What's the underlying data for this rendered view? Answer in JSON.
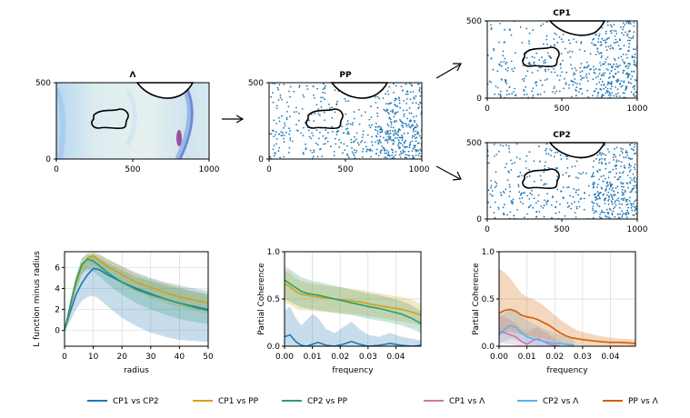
{
  "colors": {
    "cp1_cp2": "#1f77b4",
    "cp1_pp": "#d4a017",
    "cp2_pp": "#2a9d6f",
    "cp1_lam": "#cc79a7",
    "cp2_lam": "#56b4e9",
    "pp_lam": "#d55e00",
    "points": "#1f77b4"
  },
  "maps": [
    {
      "id": "lambda",
      "title": "Λ",
      "kind": "intensity",
      "xticks": [
        "0",
        "500",
        "1000"
      ],
      "yticks": [
        "0",
        "500"
      ]
    },
    {
      "id": "pp",
      "title": "PP",
      "kind": "points",
      "xticks": [
        "0",
        "500",
        "1000"
      ],
      "yticks": [
        "0",
        "500"
      ]
    },
    {
      "id": "cp1",
      "title": "CP1",
      "kind": "points",
      "xticks": [
        "0",
        "500",
        "1000"
      ],
      "yticks": [
        "0",
        "500"
      ]
    },
    {
      "id": "cp2",
      "title": "CP2",
      "kind": "points",
      "xticks": [
        "0",
        "500",
        "1000"
      ],
      "yticks": [
        "0",
        "500"
      ]
    }
  ],
  "chart_data": [
    {
      "type": "line",
      "id": "lfunc",
      "xlabel": "radius",
      "ylabel": "L function minus radius",
      "xlim": [
        0,
        50
      ],
      "ylim": [
        -1.5,
        7.5
      ],
      "xticks": [
        0,
        10,
        20,
        30,
        40,
        50
      ],
      "yticks": [
        0,
        2,
        4,
        6
      ],
      "series": [
        {
          "name": "CP1 vs CP2",
          "colorKey": "cp1_cp2",
          "x": [
            0,
            2,
            4,
            6,
            8,
            10,
            12,
            15,
            20,
            25,
            30,
            35,
            40,
            45,
            50
          ],
          "y": [
            0,
            1.8,
            3.4,
            4.5,
            5.3,
            5.9,
            5.8,
            5.3,
            4.6,
            4.0,
            3.5,
            3.0,
            2.6,
            2.3,
            2.0
          ],
          "lo": [
            0,
            0.9,
            2.0,
            2.8,
            3.2,
            3.3,
            3.0,
            2.3,
            1.2,
            0.4,
            -0.2,
            -0.6,
            -0.9,
            -1.0,
            -1.1
          ],
          "hi": [
            0,
            2.7,
            4.8,
            6.2,
            7.0,
            7.3,
            7.2,
            6.8,
            6.1,
            5.5,
            5.0,
            4.6,
            4.3,
            4.0,
            3.8
          ]
        },
        {
          "name": "CP1 vs PP",
          "colorKey": "cp1_pp",
          "x": [
            0,
            2,
            4,
            6,
            8,
            10,
            12,
            15,
            20,
            25,
            30,
            35,
            40,
            45,
            50
          ],
          "y": [
            0,
            2.3,
            4.5,
            6.1,
            6.9,
            7.1,
            6.7,
            6.1,
            5.3,
            4.6,
            4.1,
            3.6,
            3.2,
            2.9,
            2.6
          ],
          "lo": [
            0,
            1.8,
            3.8,
            5.3,
            6.0,
            6.2,
            5.9,
            5.3,
            4.4,
            3.7,
            3.1,
            2.6,
            2.2,
            1.9,
            1.6
          ],
          "hi": [
            0,
            2.8,
            5.1,
            6.8,
            7.4,
            7.5,
            7.3,
            6.8,
            6.1,
            5.4,
            4.9,
            4.5,
            4.1,
            3.8,
            3.5
          ]
        },
        {
          "name": "CP2 vs PP",
          "colorKey": "cp2_pp",
          "x": [
            0,
            2,
            4,
            6,
            8,
            10,
            12,
            15,
            20,
            25,
            30,
            35,
            40,
            45,
            50
          ],
          "y": [
            0,
            2.4,
            4.7,
            6.3,
            6.8,
            6.6,
            6.2,
            5.5,
            4.6,
            3.9,
            3.4,
            3.0,
            2.6,
            2.2,
            1.9
          ],
          "lo": [
            0,
            1.9,
            4.0,
            5.4,
            5.8,
            5.6,
            5.2,
            4.4,
            3.4,
            2.6,
            2.0,
            1.5,
            1.1,
            0.8,
            0.6
          ],
          "hi": [
            0,
            2.9,
            5.3,
            6.9,
            7.3,
            7.2,
            6.9,
            6.4,
            5.7,
            5.1,
            4.7,
            4.3,
            4.0,
            3.7,
            3.4
          ]
        }
      ]
    },
    {
      "type": "line",
      "id": "coh1",
      "xlabel": "frequency",
      "ylabel": "Partial Coherence",
      "xlim": [
        0,
        0.049
      ],
      "ylim": [
        0,
        1.0
      ],
      "xticks": [
        0,
        0.01,
        0.02,
        0.03,
        0.04
      ],
      "xticklabels": [
        "0.00",
        "0.01",
        "0.02",
        "0.03",
        "0.04"
      ],
      "yticks": [
        0,
        0.5,
        1.0
      ],
      "yticklabels": [
        "0.0",
        "0.5",
        "1.0"
      ],
      "series": [
        {
          "name": "CP1 vs CP2",
          "colorKey": "cp1_cp2",
          "x": [
            0,
            0.002,
            0.004,
            0.006,
            0.008,
            0.01,
            0.012,
            0.015,
            0.018,
            0.021,
            0.024,
            0.027,
            0.03,
            0.034,
            0.038,
            0.042,
            0.046,
            0.049
          ],
          "y": [
            0.1,
            0.12,
            0.05,
            0.01,
            0.0,
            0.02,
            0.04,
            0.01,
            0.0,
            0.02,
            0.05,
            0.02,
            0.0,
            0.01,
            0.03,
            0.01,
            0.0,
            0.01
          ],
          "lo": [
            0,
            0,
            0,
            0,
            0,
            0,
            0,
            0,
            0,
            0,
            0,
            0,
            0,
            0,
            0,
            0,
            0,
            0
          ],
          "hi": [
            0.38,
            0.42,
            0.3,
            0.22,
            0.28,
            0.34,
            0.3,
            0.18,
            0.14,
            0.2,
            0.26,
            0.18,
            0.12,
            0.1,
            0.14,
            0.1,
            0.08,
            0.06
          ]
        },
        {
          "name": "CP1 vs PP",
          "colorKey": "cp1_pp",
          "x": [
            0,
            0.002,
            0.004,
            0.006,
            0.008,
            0.01,
            0.012,
            0.015,
            0.018,
            0.021,
            0.024,
            0.027,
            0.03,
            0.034,
            0.038,
            0.042,
            0.046,
            0.049
          ],
          "y": [
            0.66,
            0.63,
            0.58,
            0.55,
            0.54,
            0.53,
            0.52,
            0.51,
            0.5,
            0.49,
            0.48,
            0.47,
            0.45,
            0.43,
            0.41,
            0.39,
            0.36,
            0.33
          ],
          "lo": [
            0.46,
            0.44,
            0.4,
            0.38,
            0.38,
            0.37,
            0.37,
            0.36,
            0.35,
            0.35,
            0.34,
            0.33,
            0.32,
            0.3,
            0.28,
            0.26,
            0.24,
            0.22
          ],
          "hi": [
            0.8,
            0.77,
            0.72,
            0.69,
            0.67,
            0.66,
            0.65,
            0.64,
            0.63,
            0.62,
            0.61,
            0.6,
            0.58,
            0.56,
            0.54,
            0.52,
            0.49,
            0.45
          ]
        },
        {
          "name": "CP2 vs PP",
          "colorKey": "cp2_pp",
          "x": [
            0,
            0.002,
            0.004,
            0.006,
            0.008,
            0.01,
            0.012,
            0.015,
            0.018,
            0.021,
            0.024,
            0.027,
            0.03,
            0.034,
            0.038,
            0.042,
            0.046,
            0.049
          ],
          "y": [
            0.7,
            0.66,
            0.62,
            0.58,
            0.56,
            0.55,
            0.54,
            0.52,
            0.5,
            0.48,
            0.46,
            0.44,
            0.42,
            0.4,
            0.37,
            0.34,
            0.29,
            0.24
          ],
          "lo": [
            0.5,
            0.47,
            0.44,
            0.41,
            0.4,
            0.39,
            0.38,
            0.37,
            0.36,
            0.34,
            0.33,
            0.31,
            0.29,
            0.27,
            0.25,
            0.22,
            0.18,
            0.14
          ],
          "hi": [
            0.85,
            0.81,
            0.77,
            0.73,
            0.71,
            0.69,
            0.68,
            0.66,
            0.64,
            0.62,
            0.6,
            0.58,
            0.56,
            0.54,
            0.51,
            0.48,
            0.43,
            0.37
          ]
        }
      ]
    },
    {
      "type": "line",
      "id": "coh2",
      "xlabel": "frequency",
      "ylabel": "Partial Coherence",
      "xlim": [
        0,
        0.049
      ],
      "ylim": [
        0,
        1.0
      ],
      "xticks": [
        0,
        0.01,
        0.02,
        0.03,
        0.04
      ],
      "xticklabels": [
        "0.00",
        "0.01",
        "0.02",
        "0.03",
        "0.04"
      ],
      "yticks": [
        0,
        0.5,
        1.0
      ],
      "yticklabels": [
        "0.0",
        "0.5",
        "1.0"
      ],
      "series": [
        {
          "name": "CP1 vs Λ",
          "colorKey": "cp1_lam",
          "x": [
            0,
            0.002,
            0.004,
            0.006,
            0.008,
            0.01,
            0.012,
            0.014,
            0.016,
            0.018,
            0.02,
            0.022
          ],
          "y": [
            0.16,
            0.14,
            0.12,
            0.1,
            0.05,
            0.02,
            0.06,
            0.08,
            0.05,
            0.02,
            0.01,
            0.0
          ],
          "lo": [
            0.04,
            0.03,
            0.02,
            0.01,
            0,
            0,
            0,
            0,
            0,
            0,
            0,
            0
          ],
          "hi": [
            0.34,
            0.31,
            0.28,
            0.24,
            0.18,
            0.14,
            0.18,
            0.2,
            0.16,
            0.12,
            0.08,
            0.05
          ]
        },
        {
          "name": "CP2 vs Λ",
          "colorKey": "cp2_lam",
          "x": [
            0,
            0.002,
            0.004,
            0.006,
            0.008,
            0.01,
            0.012,
            0.015,
            0.018,
            0.021,
            0.024,
            0.027
          ],
          "y": [
            0.12,
            0.18,
            0.22,
            0.2,
            0.14,
            0.1,
            0.08,
            0.06,
            0.04,
            0.03,
            0.02,
            0.01
          ],
          "lo": [
            0.02,
            0.05,
            0.08,
            0.07,
            0.04,
            0.02,
            0.01,
            0,
            0,
            0,
            0,
            0
          ],
          "hi": [
            0.3,
            0.36,
            0.4,
            0.38,
            0.32,
            0.27,
            0.24,
            0.2,
            0.16,
            0.13,
            0.1,
            0.08
          ]
        },
        {
          "name": "PP vs Λ",
          "colorKey": "pp_lam",
          "x": [
            0,
            0.002,
            0.004,
            0.006,
            0.008,
            0.01,
            0.012,
            0.014,
            0.016,
            0.018,
            0.02,
            0.022,
            0.024,
            0.026,
            0.028,
            0.03,
            0.033,
            0.036,
            0.04,
            0.044,
            0.049
          ],
          "y": [
            0.35,
            0.38,
            0.39,
            0.37,
            0.33,
            0.31,
            0.3,
            0.28,
            0.25,
            0.22,
            0.18,
            0.14,
            0.11,
            0.09,
            0.08,
            0.07,
            0.06,
            0.05,
            0.04,
            0.04,
            0.03
          ],
          "lo": [
            0.12,
            0.14,
            0.15,
            0.14,
            0.12,
            0.11,
            0.1,
            0.09,
            0.08,
            0.06,
            0.05,
            0.03,
            0.02,
            0.01,
            0.01,
            0.01,
            0.0,
            0.0,
            0.0,
            0.0,
            0.0
          ],
          "hi": [
            0.82,
            0.78,
            0.72,
            0.64,
            0.56,
            0.52,
            0.5,
            0.47,
            0.43,
            0.38,
            0.33,
            0.28,
            0.24,
            0.2,
            0.17,
            0.15,
            0.13,
            0.11,
            0.09,
            0.08,
            0.07
          ]
        }
      ]
    }
  ],
  "legend": [
    {
      "label": "CP1 vs CP2",
      "colorKey": "cp1_cp2"
    },
    {
      "label": "CP1 vs PP",
      "colorKey": "cp1_pp"
    },
    {
      "label": "CP2 vs PP",
      "colorKey": "cp2_pp"
    },
    {
      "label": "CP1 vs Λ",
      "colorKey": "cp1_lam"
    },
    {
      "label": "CP2 vs Λ",
      "colorKey": "cp2_lam"
    },
    {
      "label": "PP vs Λ",
      "colorKey": "pp_lam"
    }
  ]
}
